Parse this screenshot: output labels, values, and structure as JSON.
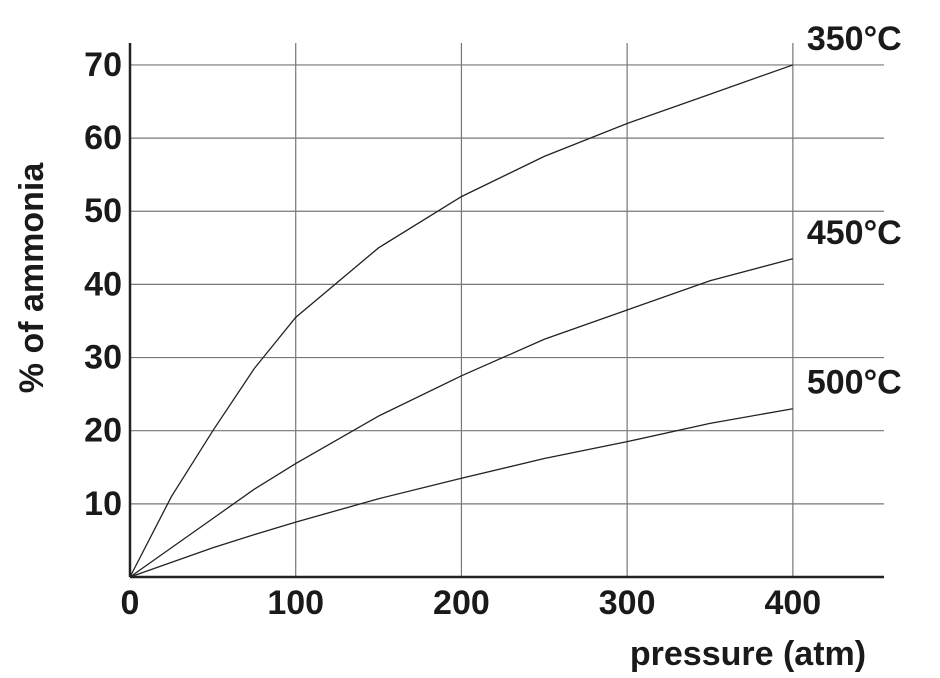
{
  "chart_data": {
    "type": "line",
    "x_label": "pressure (atm)",
    "y_label": "% of ammonia",
    "x": [
      0,
      25,
      50,
      75,
      100,
      150,
      200,
      250,
      300,
      350,
      400
    ],
    "series": [
      {
        "name": "350°C",
        "color": "#222222",
        "values": [
          0,
          11,
          20,
          28.5,
          35.5,
          45,
          52,
          57.5,
          62,
          66,
          70
        ]
      },
      {
        "name": "450°C",
        "color": "#222222",
        "values": [
          0,
          4,
          8,
          12,
          15.5,
          22,
          27.5,
          32.5,
          36.5,
          40.5,
          43.5
        ]
      },
      {
        "name": "500°C",
        "color": "#222222",
        "values": [
          0,
          2,
          4,
          5.8,
          7.5,
          10.7,
          13.5,
          16.2,
          18.5,
          21,
          23
        ]
      }
    ],
    "xlim": [
      0,
      455
    ],
    "ylim": [
      0,
      73
    ],
    "xticks": [
      0,
      100,
      200,
      300,
      400
    ],
    "yticks": [
      10,
      20,
      30,
      40,
      50,
      60,
      70
    ],
    "grid": true
  }
}
